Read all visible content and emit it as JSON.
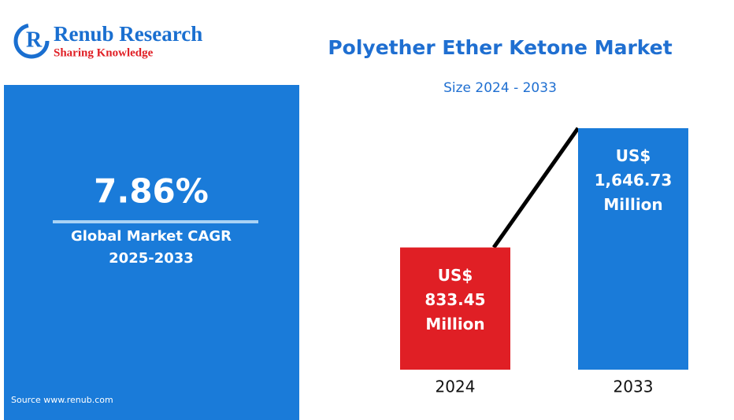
{
  "logo": {
    "name": "Renub Research",
    "tagline": "Sharing Knowledge"
  },
  "cagr_panel": {
    "value": "7.86%",
    "label": "Global Market CAGR",
    "period": "2025-2033",
    "source": "Source  www.renub.com"
  },
  "chart_data": {
    "type": "bar",
    "title": "Polyether Ether Ketone Market",
    "subtitle": "Size 2024 - 2033",
    "categories": [
      "2024",
      "2033"
    ],
    "values": [
      833.45,
      1646.73
    ],
    "value_labels": [
      "US$ 833.45 Million",
      "US$ 1,646.73 Million"
    ],
    "colors": [
      "#e01f25",
      "#1a7bd9"
    ]
  }
}
